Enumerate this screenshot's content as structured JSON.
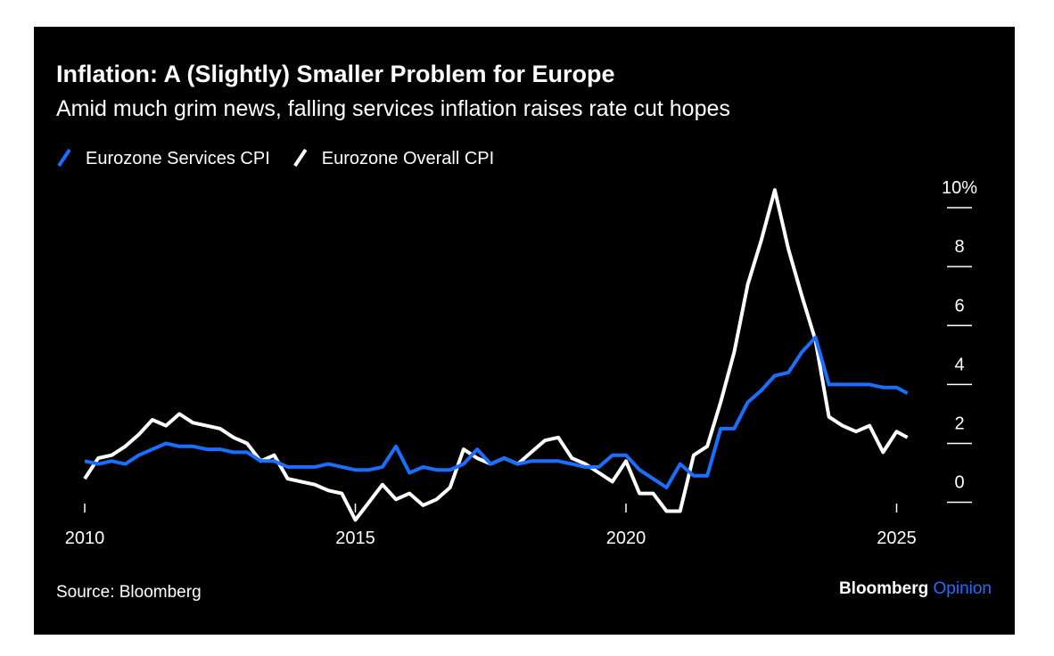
{
  "chart_data": {
    "type": "line",
    "title": "Inflation: A (Slightly) Smaller Problem for Europe",
    "subtitle": "Amid much grim news, falling services inflation raises rate cut hopes",
    "source": "Source: Bloomberg",
    "brand": "Bloomberg",
    "brand_suffix": "Opinion",
    "x": [
      2010.0,
      2010.25,
      2010.5,
      2010.75,
      2011.0,
      2011.25,
      2011.5,
      2011.75,
      2012.0,
      2012.25,
      2012.5,
      2012.75,
      2013.0,
      2013.25,
      2013.5,
      2013.75,
      2014.0,
      2014.25,
      2014.5,
      2014.75,
      2015.0,
      2015.25,
      2015.5,
      2015.75,
      2016.0,
      2016.25,
      2016.5,
      2016.75,
      2017.0,
      2017.25,
      2017.5,
      2017.75,
      2018.0,
      2018.25,
      2018.5,
      2018.75,
      2019.0,
      2019.25,
      2019.5,
      2019.75,
      2020.0,
      2020.25,
      2020.5,
      2020.75,
      2021.0,
      2021.25,
      2021.5,
      2021.75,
      2022.0,
      2022.25,
      2022.5,
      2022.75,
      2023.0,
      2023.25,
      2023.5,
      2023.75,
      2024.0,
      2024.25,
      2024.5,
      2024.75,
      2025.0,
      2025.2
    ],
    "series": [
      {
        "name": "Eurozone Services CPI",
        "color": "#1a6fff",
        "values": [
          1.4,
          1.3,
          1.4,
          1.3,
          1.6,
          1.8,
          2.0,
          1.9,
          1.9,
          1.8,
          1.8,
          1.7,
          1.7,
          1.4,
          1.4,
          1.2,
          1.2,
          1.2,
          1.3,
          1.2,
          1.1,
          1.1,
          1.2,
          1.9,
          1.0,
          1.2,
          1.1,
          1.1,
          1.3,
          1.8,
          1.3,
          1.5,
          1.3,
          1.4,
          1.4,
          1.4,
          1.3,
          1.2,
          1.2,
          1.6,
          1.6,
          1.1,
          0.8,
          0.5,
          1.3,
          0.9,
          0.9,
          2.5,
          2.5,
          3.4,
          3.8,
          4.3,
          4.4,
          5.1,
          5.6,
          4.0,
          4.0,
          4.0,
          4.0,
          3.9,
          3.9,
          3.7
        ]
      },
      {
        "name": "Eurozone Overall CPI",
        "color": "#ffffff",
        "values": [
          0.8,
          1.5,
          1.6,
          1.9,
          2.3,
          2.8,
          2.6,
          3.0,
          2.7,
          2.6,
          2.5,
          2.2,
          2.0,
          1.4,
          1.6,
          0.8,
          0.7,
          0.6,
          0.4,
          0.3,
          -0.6,
          0.0,
          0.6,
          0.1,
          0.3,
          -0.1,
          0.1,
          0.5,
          1.8,
          1.5,
          1.3,
          1.5,
          1.3,
          1.7,
          2.1,
          2.2,
          1.5,
          1.3,
          1.0,
          0.7,
          1.4,
          0.3,
          0.3,
          -0.3,
          -0.3,
          1.6,
          1.9,
          3.4,
          5.1,
          7.4,
          8.9,
          10.6,
          8.6,
          7.0,
          5.5,
          2.9,
          2.6,
          2.4,
          2.6,
          1.7,
          2.4,
          2.2
        ]
      }
    ],
    "xlim": [
      2009.9,
      2025.6
    ],
    "xticks": [
      2010,
      2015,
      2020,
      2025
    ],
    "ylim": [
      -0.8,
      11
    ],
    "yticks": [
      0,
      2,
      4,
      6,
      8,
      {
        "value": 10,
        "label": "10%"
      }
    ]
  }
}
